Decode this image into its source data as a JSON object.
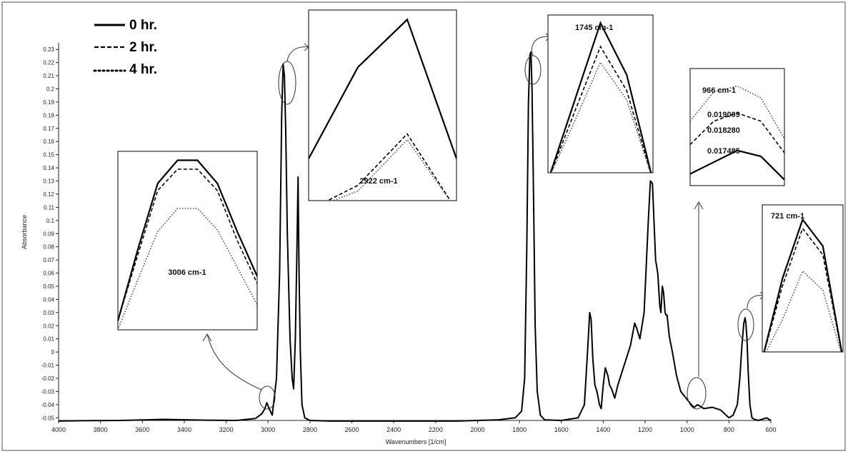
{
  "colors": {
    "line": "#000000",
    "series_4hr": "#555555",
    "frame": "#888888",
    "inset_frame": "#000000",
    "background": "#ffffff"
  },
  "chart_data": {
    "type": "line",
    "title": "",
    "xlabel": "Wavenumbers [1/cm]",
    "ylabel": "Absorbance",
    "xlim": [
      4000,
      600
    ],
    "ylim": [
      -0.052,
      0.235
    ],
    "x_reversed": true,
    "grid": false,
    "legend_position": "top-left",
    "x_ticks": [
      "4000",
      "3800",
      "3600",
      "3400",
      "3200",
      "3000",
      "2800",
      "2600",
      "2400",
      "2200",
      "2000",
      "1800",
      "1600",
      "1400",
      "1200",
      "1000",
      "800",
      "600"
    ],
    "y_ticks": [
      "0.23",
      "0.22",
      "0.21",
      "0.2",
      "0.19",
      "0.18",
      "0.17",
      "0.16",
      "0.15",
      "0.14",
      "0.13",
      "0.12",
      "0.11",
      "0.1",
      "0.09",
      "0.08",
      "0.07",
      "0.06",
      "0.05",
      "0.04",
      "0.03",
      "0.02",
      "0.01",
      "0",
      "-0.01",
      "-0.02",
      "-0.03",
      "-0.04",
      "-0.05"
    ],
    "legend": [
      {
        "label": "0 hr.",
        "marker": "——",
        "style": "solid"
      },
      {
        "label": "2 hr.",
        "marker": "-----",
        "style": "dashed"
      },
      {
        "label": "4 hr.",
        "marker": "......",
        "style": "dotted"
      }
    ],
    "series": [
      {
        "style": "solid",
        "x": [
          4000,
          3900,
          3700,
          3500,
          3300,
          3150,
          3060,
          3030,
          3015,
          3006,
          2995,
          2980,
          2960,
          2945,
          2935,
          2928,
          2922,
          2916,
          2908,
          2895,
          2885,
          2878,
          2870,
          2863,
          2857,
          2852,
          2846,
          2838,
          2825,
          2800,
          2700,
          2500,
          2300,
          2100,
          2000,
          1900,
          1820,
          1790,
          1775,
          1765,
          1757,
          1750,
          1745,
          1740,
          1733,
          1725,
          1715,
          1700,
          1680,
          1600,
          1520,
          1490,
          1475,
          1465,
          1458,
          1450,
          1440,
          1430,
          1418,
          1410,
          1400,
          1390,
          1378,
          1370,
          1360,
          1345,
          1330,
          1300,
          1270,
          1250,
          1240,
          1225,
          1205,
          1185,
          1175,
          1165,
          1158,
          1150,
          1140,
          1130,
          1125,
          1118,
          1112,
          1105,
          1100,
          1095,
          1085,
          1070,
          1050,
          1030,
          1000,
          980,
          966,
          950,
          920,
          880,
          840,
          800,
          780,
          760,
          748,
          738,
          729,
          723,
          719,
          714,
          708,
          700,
          690,
          680,
          660,
          640,
          620,
          600
        ],
        "y": [
          -0.0525,
          -0.0522,
          -0.052,
          -0.0512,
          -0.0518,
          -0.052,
          -0.0505,
          -0.047,
          -0.043,
          -0.0385,
          -0.043,
          -0.048,
          -0.02,
          0.06,
          0.18,
          0.219,
          0.21,
          0.17,
          0.09,
          0.01,
          -0.02,
          -0.028,
          0.01,
          0.07,
          0.133,
          0.06,
          0.0,
          -0.04,
          -0.05,
          -0.052,
          -0.0525,
          -0.0525,
          -0.0525,
          -0.0525,
          -0.052,
          -0.0515,
          -0.05,
          -0.045,
          -0.02,
          0.08,
          0.19,
          0.226,
          0.228,
          0.2,
          0.12,
          0.02,
          -0.03,
          -0.048,
          -0.0515,
          -0.052,
          -0.05,
          -0.04,
          0.0,
          0.03,
          0.025,
          -0.005,
          -0.025,
          -0.03,
          -0.04,
          -0.043,
          -0.025,
          -0.012,
          -0.018,
          -0.025,
          -0.028,
          -0.035,
          -0.025,
          -0.01,
          0.005,
          0.022,
          0.018,
          0.01,
          0.03,
          0.1,
          0.13,
          0.128,
          0.1,
          0.07,
          0.06,
          0.035,
          0.03,
          0.05,
          0.045,
          0.03,
          0.028,
          0.028,
          0.012,
          0.0,
          -0.018,
          -0.03,
          -0.036,
          -0.04,
          -0.042,
          -0.04,
          -0.043,
          -0.042,
          -0.044,
          -0.05,
          -0.048,
          -0.04,
          -0.02,
          0.005,
          0.022,
          0.026,
          0.022,
          0.01,
          -0.015,
          -0.04,
          -0.05,
          -0.051,
          -0.052,
          -0.051,
          -0.05,
          -0.052
        ]
      }
    ],
    "insets": [
      {
        "label": "3006 cm-1",
        "series": [
          {
            "style": "solid",
            "values": [
              0.05,
              0.45,
              0.82,
              0.95,
              0.95,
              0.82,
              0.55,
              0.3
            ]
          },
          {
            "style": "dashed",
            "values": [
              0.05,
              0.42,
              0.78,
              0.9,
              0.9,
              0.78,
              0.5,
              0.26
            ]
          },
          {
            "style": "dotted",
            "values": [
              0.0,
              0.28,
              0.55,
              0.68,
              0.68,
              0.56,
              0.35,
              0.14
            ]
          }
        ]
      },
      {
        "label": "2922 cm-1",
        "series": [
          {
            "style": "solid",
            "values": [
              0.22,
              0.7,
              0.95,
              0.22
            ]
          },
          {
            "style": "dashed",
            "values": [
              -0.05,
              0.08,
              0.35,
              -0.05
            ]
          },
          {
            "style": "dotted",
            "values": [
              -0.05,
              0.05,
              0.32,
              -0.05
            ]
          }
        ]
      },
      {
        "label": "1745 cm-1",
        "series": [
          {
            "style": "solid",
            "values": [
              -0.05,
              0.45,
              0.95,
              0.62,
              -0.05
            ]
          },
          {
            "style": "dashed",
            "values": [
              -0.05,
              0.38,
              0.8,
              0.52,
              -0.05
            ]
          },
          {
            "style": "dotted",
            "values": [
              -0.05,
              0.32,
              0.7,
              0.46,
              -0.05
            ]
          }
        ]
      },
      {
        "label": "966 cm-1",
        "series": [
          {
            "style": "dotted",
            "values": [
              0.55,
              0.8,
              0.85,
              0.75,
              0.4
            ]
          },
          {
            "style": "dashed",
            "values": [
              0.35,
              0.55,
              0.62,
              0.55,
              0.28
            ]
          },
          {
            "style": "solid",
            "values": [
              0.1,
              0.2,
              0.3,
              0.25,
              0.05
            ]
          }
        ],
        "value_labels": [
          "0.019009",
          "0.018280",
          "0.017485"
        ]
      },
      {
        "label": "721 cm-1",
        "series": [
          {
            "style": "solid",
            "values": [
              -0.05,
              0.5,
              0.9,
              0.72,
              -0.05
            ]
          },
          {
            "style": "dashed",
            "values": [
              -0.05,
              0.45,
              0.84,
              0.66,
              -0.05
            ]
          },
          {
            "style": "dotted",
            "values": [
              -0.05,
              0.22,
              0.55,
              0.42,
              -0.05
            ]
          }
        ]
      }
    ]
  }
}
